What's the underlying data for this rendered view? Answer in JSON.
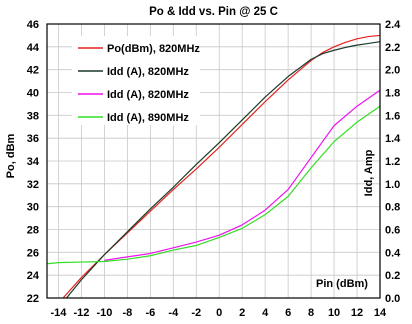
{
  "chart_data": {
    "type": "line",
    "title": "Po & Idd vs. Pin @ 25 C",
    "xlabel": "Pin (dBm)",
    "ylabel": "Po, dBm",
    "y2label": "Idd, Amp",
    "xlim": [
      -15,
      14
    ],
    "ylim": [
      22,
      46
    ],
    "y2lim": [
      0.0,
      2.4
    ],
    "x_ticks": [
      "-14",
      "-12",
      "-10",
      "-8",
      "-6",
      "-4",
      "-2",
      "0",
      "2",
      "4",
      "6",
      "8",
      "10",
      "12",
      "14"
    ],
    "y_ticks": [
      "22",
      "24",
      "26",
      "28",
      "30",
      "32",
      "34",
      "36",
      "38",
      "40",
      "42",
      "44",
      "46"
    ],
    "y2_ticks": [
      "0.0",
      "0.2",
      "0.4",
      "0.6",
      "0.8",
      "1.0",
      "1.2",
      "1.4",
      "1.6",
      "1.8",
      "2.0",
      "2.2",
      "2.4"
    ],
    "grid": true,
    "legend_position": "top-left",
    "series": [
      {
        "name": "Po(dBm), 820MHz",
        "axis": "left",
        "color": "#e8211f",
        "x": [
          -13.6,
          -12,
          -10,
          -8,
          -6,
          -4,
          -2,
          0,
          2,
          4,
          6,
          8,
          9,
          10,
          11,
          12,
          13,
          14
        ],
        "y": [
          22.0,
          23.8,
          25.8,
          27.7,
          29.6,
          31.5,
          33.3,
          35.2,
          37.2,
          39.2,
          41.1,
          42.8,
          43.5,
          44.0,
          44.4,
          44.7,
          44.9,
          45.0
        ]
      },
      {
        "name": "Idd (A), 820MHz",
        "axis": "left",
        "color": "#1a3a2a",
        "x": [
          -13.3,
          -12,
          -10,
          -8,
          -6,
          -4,
          -2,
          0,
          2,
          4,
          6,
          8,
          9,
          10,
          11,
          12,
          13,
          14
        ],
        "y": [
          22.0,
          23.6,
          25.8,
          27.8,
          29.8,
          31.7,
          33.7,
          35.6,
          37.6,
          39.6,
          41.4,
          42.9,
          43.4,
          43.7,
          43.95,
          44.15,
          44.3,
          44.45
        ]
      },
      {
        "name": "Idd (A), 820MHz",
        "axis": "right",
        "color": "#ee11ee",
        "x": [
          -10,
          -8,
          -6,
          -4,
          -2,
          0,
          2,
          4,
          6,
          8,
          10,
          12,
          14
        ],
        "y": [
          0.33,
          0.36,
          0.39,
          0.44,
          0.49,
          0.55,
          0.64,
          0.77,
          0.95,
          1.23,
          1.51,
          1.68,
          1.82
        ]
      },
      {
        "name": "Idd (A), 890MHz",
        "axis": "right",
        "color": "#33dd22",
        "x": [
          -15,
          -14,
          -12,
          -10,
          -8,
          -6,
          -4,
          -2,
          0,
          2,
          4,
          6,
          8,
          10,
          12,
          14
        ],
        "y": [
          0.3,
          0.31,
          0.315,
          0.32,
          0.34,
          0.37,
          0.42,
          0.46,
          0.53,
          0.61,
          0.73,
          0.89,
          1.14,
          1.37,
          1.54,
          1.68
        ]
      }
    ]
  }
}
